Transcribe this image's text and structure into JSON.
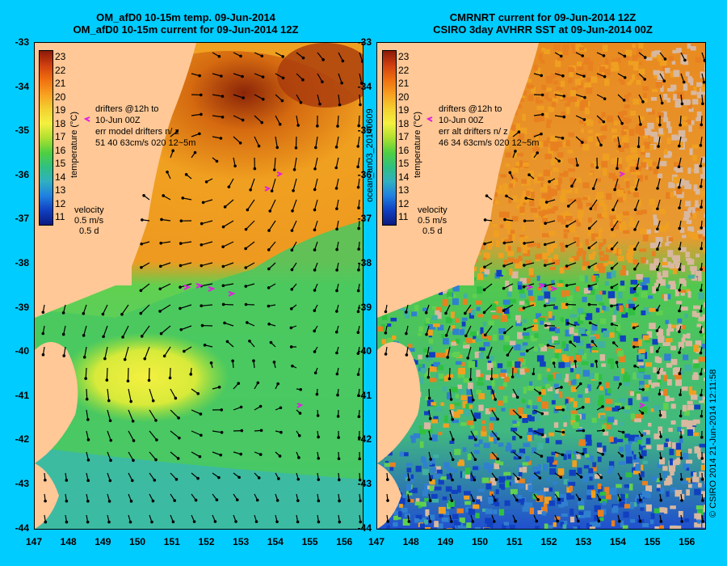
{
  "colors": {
    "background": "#00ccff",
    "land": "#ffc896",
    "cloud": "#d8b8a0"
  },
  "left": {
    "title1": "OM_afD0 10-15m temp. 09-Jun-2014",
    "title2": "OM_afD0 10-15m current for 09-Jun-2014 12Z",
    "drifters": [
      "drifters @12h to",
      "10-Jun 00Z",
      "err model drifters n/ z",
      "51   40    63cm/s 020 12~5m"
    ],
    "velocity": "velocity",
    "vel_speed": "0.5 m/s",
    "vel_days": "0.5 d"
  },
  "right": {
    "title1": "CMRNRT current for 09-Jun-2014 12Z",
    "title2": "CSIRO 3day AVHRR SST at 09-Jun-2014 00Z",
    "drifters": [
      "drifters @12h to",
      "10-Jun 00Z",
      "err alt drifters n/ z",
      "46 34 63cm/s 020 12~5m"
    ],
    "velocity": "velocity",
    "vel_speed": "0.5 m/s",
    "vel_days": "0.5 d"
  },
  "colorbar": {
    "label": "temperature (°C)",
    "ticks": [
      "23",
      "22",
      "21",
      "20",
      "19",
      "18",
      "17",
      "16",
      "15",
      "14",
      "13",
      "12",
      "11"
    ]
  },
  "side_text": {
    "middle": "ocean_an03_20140609",
    "right": "© CSIRO 2014   21-Jun-2014 12:11:58"
  },
  "y_ticks": [
    "-33",
    "-34",
    "-35",
    "-36",
    "-37",
    "-38",
    "-39",
    "-40",
    "-41",
    "-42",
    "-43",
    "-44"
  ],
  "x_ticks": [
    "147",
    "148",
    "149",
    "150",
    "151",
    "152",
    "153",
    "154",
    "155",
    "156"
  ],
  "map": {
    "lon_range": [
      147,
      156.5
    ],
    "lat_range": [
      -44,
      -33
    ],
    "temp_range": [
      10.5,
      23.5
    ]
  }
}
